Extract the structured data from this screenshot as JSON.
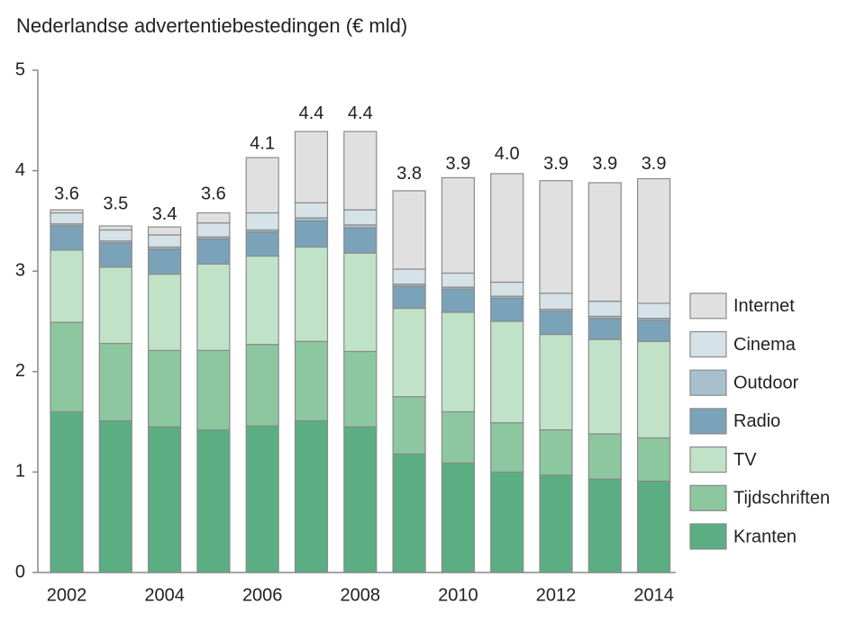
{
  "chart_data": {
    "type": "stacked_bar",
    "title": "Nederlandse advertentiebestedingen (€ mld)",
    "categories": [
      "2002",
      null,
      "2004",
      null,
      "2006",
      null,
      "2008",
      null,
      "2010",
      null,
      "2012",
      null,
      "2014"
    ],
    "series": [
      {
        "name": "Kranten",
        "color": "#5aae82",
        "values": [
          1.6,
          1.51,
          1.45,
          1.42,
          1.46,
          1.51,
          1.45,
          1.18,
          1.09,
          1.0,
          0.97,
          0.93,
          0.91
        ]
      },
      {
        "name": "Tijdschriften",
        "color": "#8cc7a0",
        "values": [
          0.89,
          0.77,
          0.76,
          0.79,
          0.81,
          0.79,
          0.75,
          0.57,
          0.51,
          0.49,
          0.45,
          0.45,
          0.43
        ]
      },
      {
        "name": "TV",
        "color": "#c0e3c8",
        "values": [
          0.72,
          0.76,
          0.76,
          0.86,
          0.88,
          0.94,
          0.98,
          0.88,
          0.99,
          1.01,
          0.95,
          0.94,
          0.96
        ]
      },
      {
        "name": "Radio",
        "color": "#7aa2b8",
        "values": [
          0.24,
          0.24,
          0.25,
          0.25,
          0.24,
          0.26,
          0.25,
          0.22,
          0.23,
          0.23,
          0.23,
          0.21,
          0.21
        ]
      },
      {
        "name": "Outdoor",
        "color": "#a8c0cc",
        "values": [
          0.02,
          0.02,
          0.02,
          0.02,
          0.02,
          0.03,
          0.03,
          0.02,
          0.02,
          0.02,
          0.02,
          0.02,
          0.02
        ]
      },
      {
        "name": "Cinema",
        "color": "#d5e2e8",
        "values": [
          0.11,
          0.11,
          0.12,
          0.14,
          0.17,
          0.15,
          0.15,
          0.15,
          0.14,
          0.14,
          0.16,
          0.15,
          0.15
        ]
      },
      {
        "name": "Internet",
        "color": "#e0e0e0",
        "values": [
          0.03,
          0.04,
          0.08,
          0.1,
          0.55,
          0.71,
          0.78,
          0.78,
          0.95,
          1.08,
          1.12,
          1.18,
          1.24
        ]
      }
    ],
    "totals": [
      3.6,
      3.5,
      3.4,
      3.6,
      4.1,
      4.4,
      4.4,
      3.8,
      3.9,
      4.0,
      3.9,
      3.9,
      3.9
    ],
    "total_labels": [
      "3.6",
      "3.5",
      "3.4",
      "3.6",
      "4.1",
      "4.4",
      "4.4",
      "3.8",
      "3.9",
      "4.0",
      "3.9",
      "3.9",
      "3.9"
    ],
    "ylim": [
      0,
      5
    ],
    "yticks": [
      0,
      1,
      2,
      3,
      4,
      5
    ],
    "grid": false
  }
}
